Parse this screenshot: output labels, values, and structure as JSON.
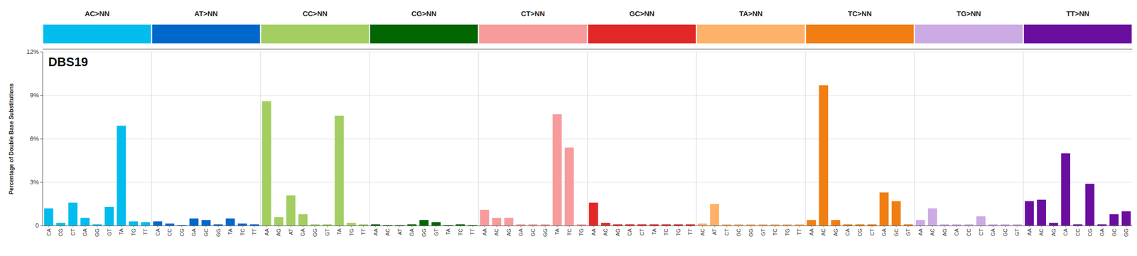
{
  "chart_data": {
    "type": "bar",
    "title": "DBS19",
    "ylabel": "Percentage of Double Base Substitutions",
    "ylim": [
      0,
      0.12
    ],
    "yticks": [
      0,
      {
        "value": 0.03,
        "label": "3%"
      },
      {
        "value": 0.06,
        "label": "6%"
      },
      {
        "value": 0.09,
        "label": "9%"
      },
      {
        "value": 0.12,
        "label": "12%"
      }
    ],
    "grid": true,
    "series": [
      {
        "name": "AC>NN",
        "color": "#03BCEE",
        "categories": [
          "CA",
          "CG",
          "CT",
          "GA",
          "GG",
          "GT",
          "TA",
          "TG",
          "TT"
        ],
        "values": [
          0.012,
          0.002,
          0.016,
          0.0055,
          0.001,
          0.013,
          0.069,
          0.003,
          0.0025
        ]
      },
      {
        "name": "AT>NN",
        "color": "#0168CB",
        "categories": [
          "CA",
          "CC",
          "CG",
          "GA",
          "GC",
          "GG",
          "TA",
          "TC",
          "TT"
        ],
        "values": [
          0.003,
          0.0015,
          0.0005,
          0.005,
          0.004,
          0.001,
          0.005,
          0.0015,
          0.001
        ]
      },
      {
        "name": "CC>NN",
        "color": "#A3CE62",
        "categories": [
          "AA",
          "AG",
          "AT",
          "GA",
          "GG",
          "GT",
          "TA",
          "TG",
          "TT"
        ],
        "values": [
          0.086,
          0.006,
          0.021,
          0.008,
          0.001,
          0.001,
          0.076,
          0.002,
          0.001
        ]
      },
      {
        "name": "CG>NN",
        "color": "#016501",
        "categories": [
          "AA",
          "AC",
          "AT",
          "GA",
          "GG",
          "GT",
          "TA",
          "TC",
          "TT"
        ],
        "values": [
          0.001,
          0.0005,
          0.0005,
          0.001,
          0.004,
          0.0025,
          0.0005,
          0.001,
          0.0005
        ]
      },
      {
        "name": "CT>NN",
        "color": "#F79B9C",
        "categories": [
          "AA",
          "AC",
          "AG",
          "GA",
          "GC",
          "GG",
          "TA",
          "TC",
          "TG"
        ],
        "values": [
          0.011,
          0.0055,
          0.0055,
          0.001,
          0.001,
          0.001,
          0.077,
          0.054,
          0.001
        ]
      },
      {
        "name": "GC>NN",
        "color": "#E12826",
        "categories": [
          "AA",
          "AC",
          "AG",
          "CA",
          "CT",
          "TA",
          "TC",
          "TG",
          "TT"
        ],
        "values": [
          0.016,
          0.002,
          0.001,
          0.001,
          0.001,
          0.001,
          0.001,
          0.001,
          0.001
        ]
      },
      {
        "name": "TA>NN",
        "color": "#FEB168",
        "categories": [
          "AC",
          "AT",
          "CT",
          "GC",
          "GG",
          "GT",
          "TC",
          "TG",
          "TT"
        ],
        "values": [
          0.0015,
          0.015,
          0.001,
          0.001,
          0.001,
          0.001,
          0.001,
          0.001,
          0.001
        ]
      },
      {
        "name": "TC>NN",
        "color": "#F07E12",
        "categories": [
          "AA",
          "AC",
          "AG",
          "CA",
          "CG",
          "CT",
          "GA",
          "GC",
          "GT"
        ],
        "values": [
          0.004,
          0.097,
          0.004,
          0.001,
          0.001,
          0.001,
          0.023,
          0.017,
          0.001
        ]
      },
      {
        "name": "TG>NN",
        "color": "#CCAAE4",
        "categories": [
          "AA",
          "AC",
          "AG",
          "CA",
          "CC",
          "CT",
          "GA",
          "GC",
          "GT"
        ],
        "values": [
          0.004,
          0.012,
          0.001,
          0.001,
          0.001,
          0.0065,
          0.001,
          0.001,
          0.001
        ]
      },
      {
        "name": "TT>NN",
        "color": "#6A0EA0",
        "categories": [
          "AA",
          "AC",
          "AG",
          "CA",
          "CC",
          "CG",
          "GA",
          "GC",
          "GG"
        ],
        "values": [
          0.017,
          0.018,
          0.002,
          0.05,
          0.001,
          0.029,
          0.001,
          0.008,
          0.01
        ]
      }
    ]
  }
}
